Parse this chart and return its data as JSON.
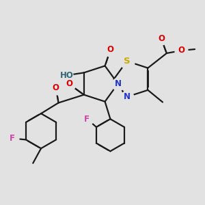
{
  "bg_color": "#e2e2e2",
  "bond_color": "#1a1a1a",
  "bond_width": 1.6,
  "dbo": 0.012,
  "figsize": [
    3.0,
    3.0
  ],
  "dpi": 100,
  "colors": {
    "O": "#dd0000",
    "N": "#2233cc",
    "S": "#ccaa00",
    "F": "#cc44aa",
    "HO": "#336677",
    "C": "#1a1a1a"
  }
}
